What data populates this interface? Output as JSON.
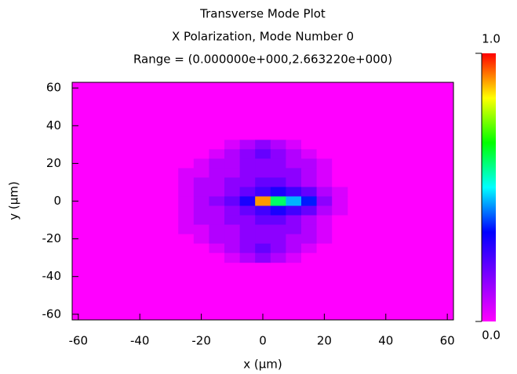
{
  "chart_data": {
    "type": "heatmap",
    "title": "Transverse Mode Plot",
    "subtitle": "X Polarization, Mode Number 0",
    "range_label": "Range = (0.000000e+000,2.663220e+000)",
    "x_label": "x (µm)",
    "y_label": "y (µm)",
    "xlim": [
      -62,
      62
    ],
    "ylim": [
      -63,
      63
    ],
    "xticks": [
      -60,
      -40,
      -20,
      0,
      20,
      40,
      60
    ],
    "yticks": [
      -60,
      -40,
      -20,
      0,
      20,
      40,
      60
    ],
    "zlim": [
      0,
      1
    ],
    "zticks": [
      {
        "value": 0,
        "label": "0.0"
      },
      {
        "value": 1,
        "label": "1.0"
      }
    ],
    "colormap": [
      "#ff00ff",
      "#8000ff",
      "#0000ff",
      "#00ffff",
      "#00ff00",
      "#ffff00",
      "#ff0000"
    ],
    "x": [
      -30,
      -25,
      -20,
      -15,
      -10,
      -5,
      0,
      5,
      10,
      15,
      20,
      25
    ],
    "y": [
      30,
      25,
      20,
      15,
      10,
      5,
      0,
      -5,
      -10,
      -15,
      -20,
      -25,
      -30
    ],
    "z": [
      [
        0,
        0,
        0,
        0,
        0.05,
        0.1,
        0.15,
        0.1,
        0.05,
        0,
        0,
        0
      ],
      [
        0,
        0,
        0,
        0.05,
        0.1,
        0.15,
        0.2,
        0.15,
        0.1,
        0.05,
        0,
        0
      ],
      [
        0,
        0,
        0.05,
        0.1,
        0.1,
        0.15,
        0.15,
        0.15,
        0.1,
        0.1,
        0.05,
        0
      ],
      [
        0,
        0.05,
        0.05,
        0.1,
        0.1,
        0.15,
        0.15,
        0.15,
        0.15,
        0.1,
        0.05,
        0
      ],
      [
        0,
        0.05,
        0.1,
        0.1,
        0.15,
        0.15,
        0.2,
        0.2,
        0.15,
        0.1,
        0.05,
        0
      ],
      [
        0,
        0.05,
        0.1,
        0.1,
        0.15,
        0.2,
        0.25,
        0.3,
        0.25,
        0.2,
        0.1,
        0.05
      ],
      [
        0,
        0.05,
        0.1,
        0.15,
        0.2,
        0.3,
        0.9,
        0.6,
        0.45,
        0.35,
        0.15,
        0.05
      ],
      [
        0,
        0.05,
        0.1,
        0.1,
        0.15,
        0.2,
        0.25,
        0.3,
        0.25,
        0.2,
        0.1,
        0.05
      ],
      [
        0,
        0.05,
        0.1,
        0.1,
        0.15,
        0.15,
        0.2,
        0.2,
        0.15,
        0.1,
        0.05,
        0
      ],
      [
        0,
        0.05,
        0.05,
        0.1,
        0.1,
        0.15,
        0.15,
        0.15,
        0.15,
        0.1,
        0.05,
        0
      ],
      [
        0,
        0,
        0.05,
        0.1,
        0.1,
        0.15,
        0.15,
        0.15,
        0.1,
        0.1,
        0.05,
        0
      ],
      [
        0,
        0,
        0,
        0.05,
        0.1,
        0.15,
        0.2,
        0.15,
        0.1,
        0.05,
        0,
        0
      ],
      [
        0,
        0,
        0,
        0,
        0.05,
        0.1,
        0.15,
        0.1,
        0.05,
        0,
        0,
        0
      ]
    ]
  }
}
